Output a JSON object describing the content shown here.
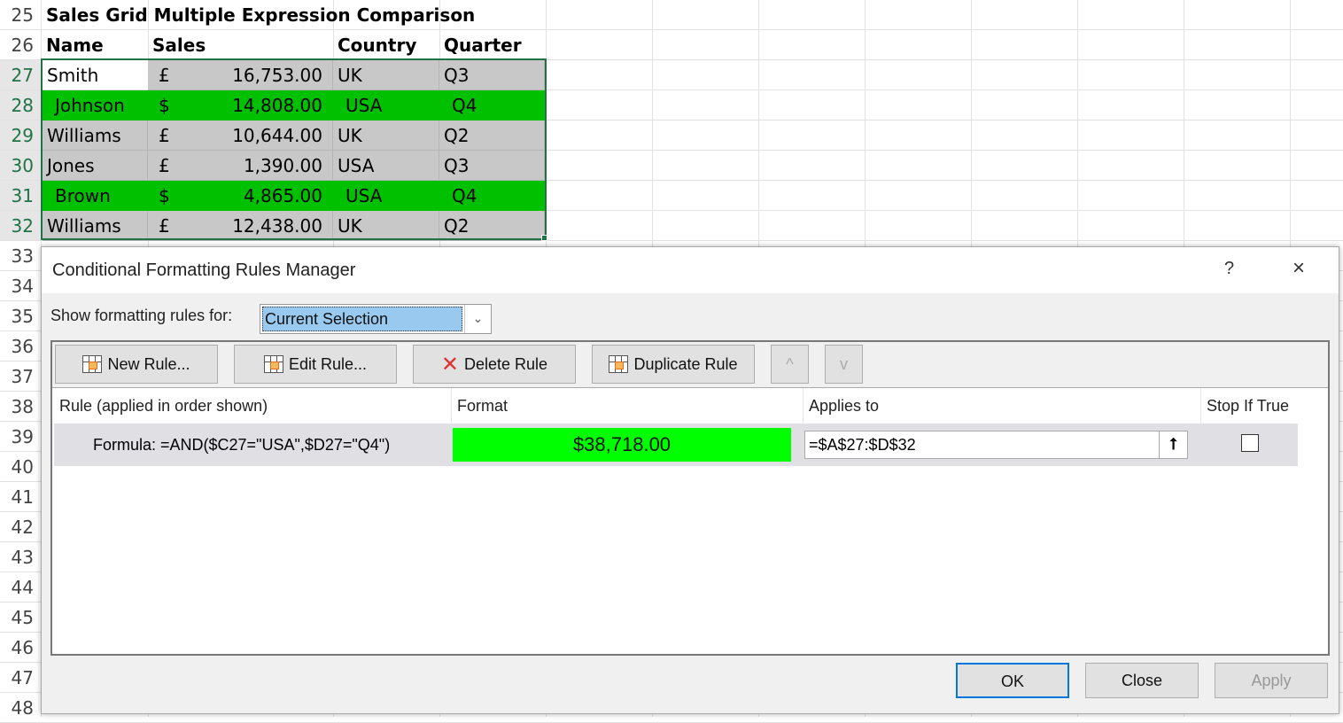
{
  "sheet": {
    "row_numbers": [
      "25",
      "26",
      "27",
      "28",
      "29",
      "30",
      "31",
      "32",
      "33",
      "34",
      "35",
      "36",
      "37",
      "38",
      "39",
      "40",
      "41",
      "42",
      "43",
      "44",
      "45",
      "46",
      "47",
      "48"
    ],
    "title": "Sales Grid Multiple Expression Comparison",
    "headers": [
      "Name",
      "Sales",
      "Country",
      "Quarter"
    ],
    "rows": [
      {
        "name": "Smith",
        "currency": "£",
        "sales": "16,753.00",
        "country": "UK",
        "quarter": "Q3",
        "highlight": false
      },
      {
        "name": "Johnson",
        "currency": "$",
        "sales": "14,808.00",
        "country": "USA",
        "quarter": "Q4",
        "highlight": true
      },
      {
        "name": "Williams",
        "currency": "£",
        "sales": "10,644.00",
        "country": "UK",
        "quarter": "Q2",
        "highlight": false
      },
      {
        "name": "Jones",
        "currency": "£",
        "sales": "1,390.00",
        "country": "USA",
        "quarter": "Q3",
        "highlight": false
      },
      {
        "name": "Brown",
        "currency": "$",
        "sales": "4,865.00",
        "country": "USA",
        "quarter": "Q4",
        "highlight": true
      },
      {
        "name": "Williams",
        "currency": "£",
        "sales": "12,438.00",
        "country": "UK",
        "quarter": "Q2",
        "highlight": false
      }
    ],
    "colors": {
      "highlight": "#00c000",
      "gray": "#c8c8c8",
      "selection": "#217346"
    }
  },
  "dialog": {
    "title": "Conditional Formatting Rules Manager",
    "help": "?",
    "close_icon": "×",
    "show_rules_label": "Show formatting rules for:",
    "show_rules_value": "Current Selection",
    "toolbar": {
      "new_rule": "New Rule...",
      "edit_rule": "Edit Rule...",
      "delete_rule": "Delete Rule",
      "duplicate_rule": "Duplicate Rule",
      "move_up": "^",
      "move_down": "v"
    },
    "columns": [
      "Rule (applied in order shown)",
      "Format",
      "Applies to",
      "Stop If True"
    ],
    "rules": [
      {
        "rule": "Formula: =AND($C27=\"USA\",$D27=\"Q4\")",
        "format_preview": "$38,718.00",
        "applies_to": "=$A$27:$D$32",
        "stop_if_true": false
      }
    ],
    "format_color": "#00ff00",
    "buttons": {
      "ok": "OK",
      "close": "Close",
      "apply": "Apply"
    }
  }
}
